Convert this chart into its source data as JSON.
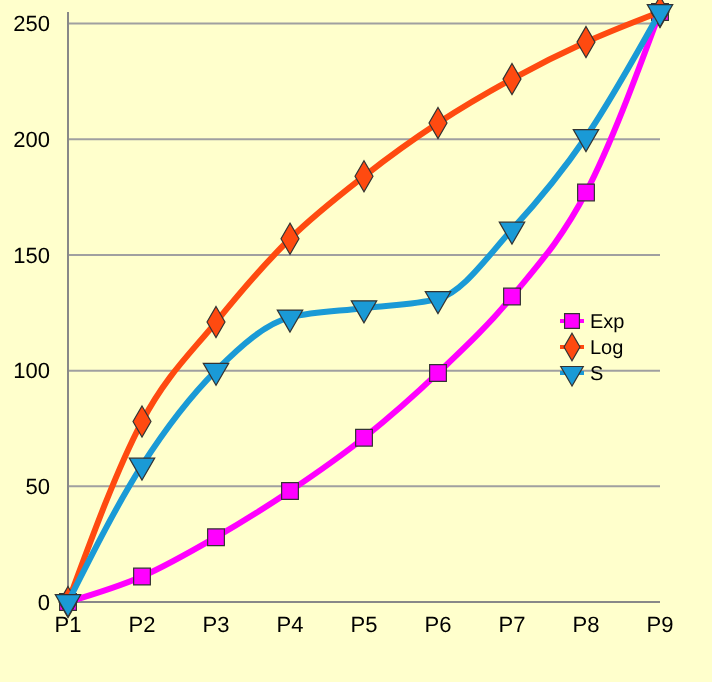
{
  "chart_data": {
    "type": "line",
    "categories": [
      "P1",
      "P2",
      "P3",
      "P4",
      "P5",
      "P6",
      "P7",
      "P8",
      "P9"
    ],
    "series": [
      {
        "name": "Exp",
        "color": "#ff00ff",
        "marker": "square",
        "values": [
          0,
          11,
          28,
          48,
          71,
          99,
          132,
          177,
          255
        ]
      },
      {
        "name": "Log",
        "color": "#ff4a10",
        "marker": "diamond",
        "values": [
          0,
          78,
          121,
          157,
          184,
          207,
          226,
          242,
          255
        ]
      },
      {
        "name": "S",
        "color": "#1a9ad6",
        "marker": "triangle",
        "values": [
          0,
          59,
          100,
          123,
          127,
          131,
          161,
          201,
          255
        ]
      }
    ],
    "ylim": [
      0,
      255
    ],
    "yticks": [
      0,
      50,
      100,
      150,
      200,
      250
    ],
    "grid": "y",
    "legend": "right"
  }
}
